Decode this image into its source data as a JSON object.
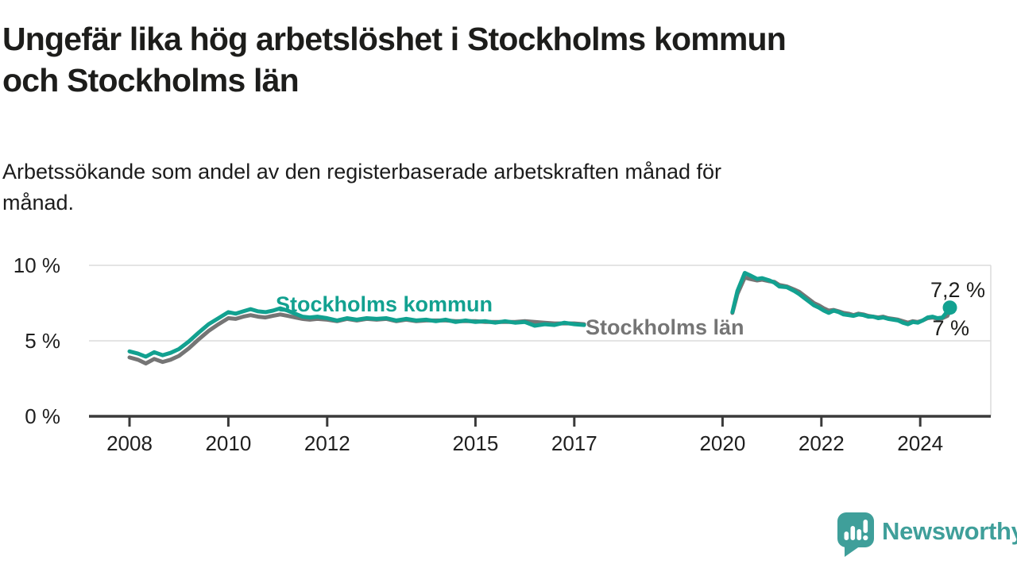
{
  "header": {
    "title_line1": "Ungefär lika hög arbetslöshet i Stockholms kommun",
    "title_line2": "och Stockholms län",
    "subtitle_line1": "Arbetssökande som andel av den registerbaserade arbetskraften månad för",
    "subtitle_line2": "månad."
  },
  "chart_data": {
    "type": "line",
    "title": "Ungefär lika hög arbetslöshet i Stockholms kommun och Stockholms län",
    "subtitle": "Arbetssökande som andel av den registerbaserade arbetskraften månad för månad.",
    "unit": "%",
    "xlim": [
      2007.2,
      2025.4
    ],
    "ylim": [
      0,
      10.8
    ],
    "grid": "horizontal",
    "legend": "inline-labels",
    "x_ticks": [
      2008,
      2010,
      2012,
      2015,
      2017,
      2020,
      2022,
      2024
    ],
    "y_ticks": [
      {
        "value": 0,
        "label": "0 %"
      },
      {
        "value": 5,
        "label": "5 %"
      },
      {
        "value": 10,
        "label": "10 %"
      }
    ],
    "axis_color": "#3a3a3a",
    "grid_color": "#dcdcdc",
    "tick_label_color": "#1f1f1f",
    "data_gap_note": "no line drawn between 2017.2 and 2020.2",
    "series": [
      {
        "name": "Stockholms län",
        "label": "Stockholms län",
        "color": "#757575",
        "end_label": "7 %",
        "end_value": 7.0,
        "segments": [
          [
            [
              2008.0,
              3.9
            ],
            [
              2008.17,
              3.75
            ],
            [
              2008.33,
              3.5
            ],
            [
              2008.5,
              3.8
            ],
            [
              2008.67,
              3.6
            ],
            [
              2008.83,
              3.75
            ],
            [
              2009.0,
              4.0
            ],
            [
              2009.2,
              4.5
            ],
            [
              2009.4,
              5.1
            ],
            [
              2009.6,
              5.65
            ],
            [
              2009.8,
              6.1
            ],
            [
              2010.0,
              6.5
            ],
            [
              2010.15,
              6.45
            ],
            [
              2010.3,
              6.6
            ],
            [
              2010.45,
              6.7
            ],
            [
              2010.6,
              6.6
            ],
            [
              2010.75,
              6.55
            ],
            [
              2010.9,
              6.65
            ],
            [
              2011.05,
              6.75
            ],
            [
              2011.2,
              6.65
            ],
            [
              2011.35,
              6.55
            ],
            [
              2011.5,
              6.45
            ],
            [
              2011.65,
              6.4
            ],
            [
              2011.8,
              6.45
            ],
            [
              2012.0,
              6.4
            ],
            [
              2012.2,
              6.3
            ],
            [
              2012.4,
              6.45
            ],
            [
              2012.6,
              6.35
            ],
            [
              2012.8,
              6.45
            ],
            [
              2013.0,
              6.4
            ],
            [
              2013.2,
              6.45
            ],
            [
              2013.4,
              6.3
            ],
            [
              2013.6,
              6.4
            ],
            [
              2013.8,
              6.3
            ],
            [
              2014.0,
              6.35
            ],
            [
              2014.2,
              6.35
            ],
            [
              2014.4,
              6.35
            ],
            [
              2014.6,
              6.3
            ],
            [
              2014.8,
              6.3
            ],
            [
              2015.0,
              6.3
            ],
            [
              2015.2,
              6.25
            ],
            [
              2015.4,
              6.25
            ],
            [
              2015.6,
              6.25
            ],
            [
              2015.8,
              6.25
            ],
            [
              2016.0,
              6.3
            ],
            [
              2016.2,
              6.25
            ],
            [
              2016.4,
              6.2
            ],
            [
              2016.6,
              6.15
            ],
            [
              2016.8,
              6.15
            ],
            [
              2017.0,
              6.15
            ],
            [
              2017.2,
              6.1
            ]
          ],
          [
            [
              2020.2,
              6.85
            ],
            [
              2020.3,
              8.1
            ],
            [
              2020.45,
              9.2
            ],
            [
              2020.55,
              9.1
            ],
            [
              2020.7,
              9.0
            ],
            [
              2020.8,
              9.05
            ],
            [
              2020.95,
              8.95
            ],
            [
              2021.05,
              8.9
            ],
            [
              2021.15,
              8.7
            ],
            [
              2021.3,
              8.6
            ],
            [
              2021.45,
              8.4
            ],
            [
              2021.55,
              8.25
            ],
            [
              2021.65,
              8.0
            ],
            [
              2021.75,
              7.75
            ],
            [
              2021.85,
              7.5
            ],
            [
              2021.95,
              7.35
            ],
            [
              2022.05,
              7.15
            ],
            [
              2022.15,
              7.0
            ],
            [
              2022.25,
              7.05
            ],
            [
              2022.35,
              6.95
            ],
            [
              2022.45,
              6.85
            ],
            [
              2022.55,
              6.8
            ],
            [
              2022.65,
              6.7
            ],
            [
              2022.75,
              6.8
            ],
            [
              2022.85,
              6.75
            ],
            [
              2022.95,
              6.65
            ],
            [
              2023.05,
              6.6
            ],
            [
              2023.15,
              6.55
            ],
            [
              2023.25,
              6.6
            ],
            [
              2023.35,
              6.5
            ],
            [
              2023.45,
              6.45
            ],
            [
              2023.55,
              6.4
            ],
            [
              2023.65,
              6.3
            ],
            [
              2023.75,
              6.2
            ],
            [
              2023.85,
              6.3
            ],
            [
              2023.95,
              6.25
            ],
            [
              2024.05,
              6.35
            ],
            [
              2024.15,
              6.5
            ],
            [
              2024.25,
              6.55
            ],
            [
              2024.35,
              6.45
            ],
            [
              2024.45,
              6.5
            ],
            [
              2024.55,
              6.65
            ],
            [
              2024.6,
              7.0
            ]
          ]
        ]
      },
      {
        "name": "Stockholms kommun",
        "label": "Stockholms kommun",
        "color": "#12a190",
        "end_label": "7,2 %",
        "end_value": 7.2,
        "end_dot": true,
        "segments": [
          [
            [
              2008.0,
              4.3
            ],
            [
              2008.17,
              4.15
            ],
            [
              2008.33,
              3.95
            ],
            [
              2008.5,
              4.25
            ],
            [
              2008.67,
              4.05
            ],
            [
              2008.83,
              4.2
            ],
            [
              2009.0,
              4.45
            ],
            [
              2009.2,
              4.95
            ],
            [
              2009.4,
              5.55
            ],
            [
              2009.6,
              6.1
            ],
            [
              2009.8,
              6.5
            ],
            [
              2010.0,
              6.9
            ],
            [
              2010.15,
              6.8
            ],
            [
              2010.3,
              6.95
            ],
            [
              2010.45,
              7.1
            ],
            [
              2010.6,
              6.95
            ],
            [
              2010.75,
              6.9
            ],
            [
              2010.9,
              7.0
            ],
            [
              2011.05,
              7.15
            ],
            [
              2011.2,
              7.0
            ],
            [
              2011.35,
              6.8
            ],
            [
              2011.5,
              6.6
            ],
            [
              2011.65,
              6.55
            ],
            [
              2011.8,
              6.6
            ],
            [
              2012.0,
              6.5
            ],
            [
              2012.2,
              6.35
            ],
            [
              2012.4,
              6.5
            ],
            [
              2012.6,
              6.4
            ],
            [
              2012.8,
              6.5
            ],
            [
              2013.0,
              6.45
            ],
            [
              2013.2,
              6.5
            ],
            [
              2013.4,
              6.35
            ],
            [
              2013.6,
              6.45
            ],
            [
              2013.8,
              6.35
            ],
            [
              2014.0,
              6.4
            ],
            [
              2014.2,
              6.3
            ],
            [
              2014.4,
              6.4
            ],
            [
              2014.6,
              6.25
            ],
            [
              2014.8,
              6.35
            ],
            [
              2015.0,
              6.25
            ],
            [
              2015.2,
              6.3
            ],
            [
              2015.4,
              6.2
            ],
            [
              2015.6,
              6.3
            ],
            [
              2015.8,
              6.2
            ],
            [
              2016.0,
              6.25
            ],
            [
              2016.2,
              6.0
            ],
            [
              2016.4,
              6.1
            ],
            [
              2016.6,
              6.05
            ],
            [
              2016.8,
              6.2
            ],
            [
              2017.0,
              6.1
            ],
            [
              2017.2,
              6.05
            ]
          ],
          [
            [
              2020.2,
              6.9
            ],
            [
              2020.3,
              8.3
            ],
            [
              2020.45,
              9.5
            ],
            [
              2020.55,
              9.35
            ],
            [
              2020.7,
              9.1
            ],
            [
              2020.8,
              9.15
            ],
            [
              2020.95,
              9.0
            ],
            [
              2021.05,
              8.85
            ],
            [
              2021.15,
              8.6
            ],
            [
              2021.3,
              8.55
            ],
            [
              2021.45,
              8.3
            ],
            [
              2021.55,
              8.1
            ],
            [
              2021.65,
              7.85
            ],
            [
              2021.75,
              7.6
            ],
            [
              2021.85,
              7.35
            ],
            [
              2021.95,
              7.2
            ],
            [
              2022.05,
              7.0
            ],
            [
              2022.15,
              6.85
            ],
            [
              2022.25,
              7.0
            ],
            [
              2022.35,
              6.9
            ],
            [
              2022.45,
              6.75
            ],
            [
              2022.55,
              6.7
            ],
            [
              2022.65,
              6.65
            ],
            [
              2022.75,
              6.75
            ],
            [
              2022.85,
              6.7
            ],
            [
              2022.95,
              6.6
            ],
            [
              2023.05,
              6.6
            ],
            [
              2023.15,
              6.5
            ],
            [
              2023.25,
              6.55
            ],
            [
              2023.35,
              6.45
            ],
            [
              2023.45,
              6.4
            ],
            [
              2023.55,
              6.35
            ],
            [
              2023.65,
              6.2
            ],
            [
              2023.75,
              6.1
            ],
            [
              2023.85,
              6.25
            ],
            [
              2023.95,
              6.2
            ],
            [
              2024.05,
              6.35
            ],
            [
              2024.15,
              6.55
            ],
            [
              2024.25,
              6.6
            ],
            [
              2024.35,
              6.5
            ],
            [
              2024.45,
              6.55
            ],
            [
              2024.5,
              6.75
            ],
            [
              2024.6,
              7.2
            ]
          ]
        ]
      }
    ]
  },
  "footer": {
    "brand": "Newsworthy",
    "brand_color": "#3f9f9a"
  }
}
